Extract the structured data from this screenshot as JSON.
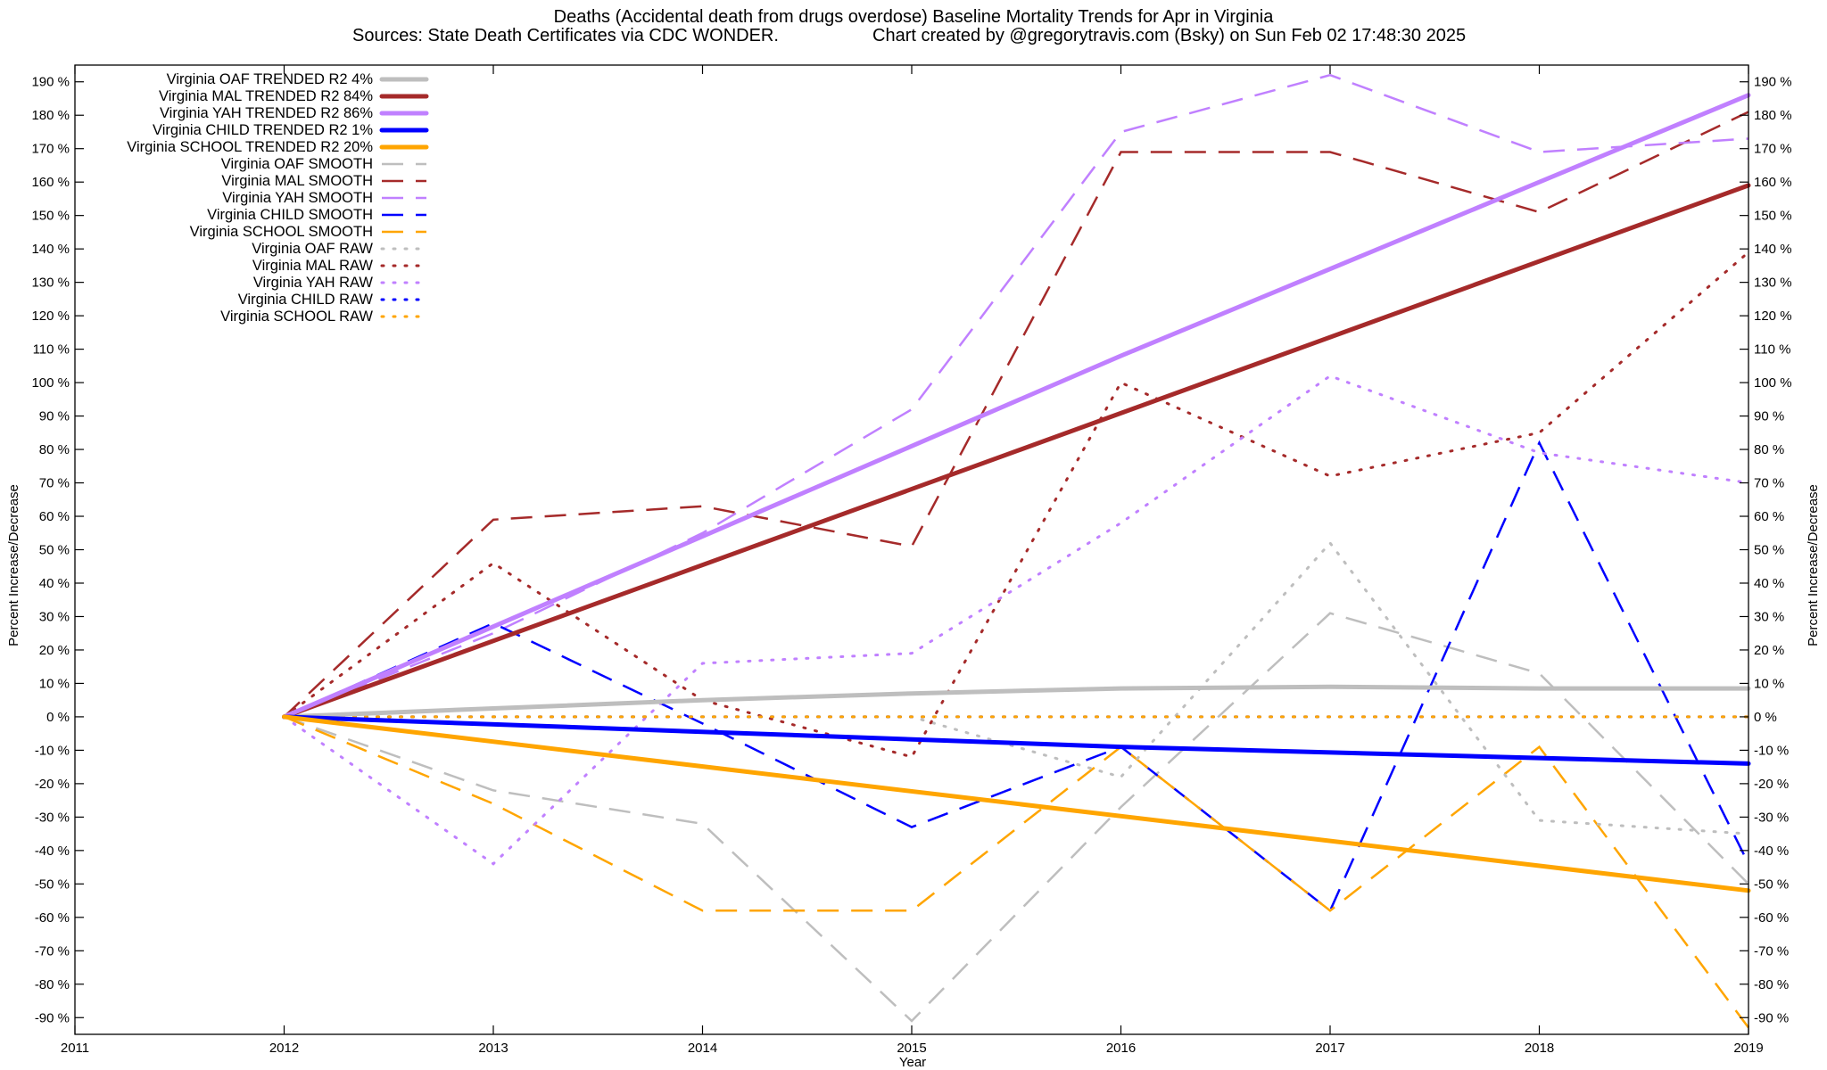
{
  "chart_data": {
    "type": "line",
    "title": "Deaths (Accidental death from drugs overdose)  Baseline Mortality Trends for Apr in Virginia",
    "subtitle_left": "Sources: State Death Certificates via CDC WONDER.",
    "subtitle_right": "Chart created by @gregorytravis.com (Bsky) on Sun Feb 02 17:48:30 2025",
    "xlabel": "Year",
    "ylabel_left": "Percent Increase/Decrease",
    "ylabel_right": "Percent Increase/Decrease",
    "xlim": [
      2011,
      2019
    ],
    "ylim": [
      -95,
      195
    ],
    "x_ticks": [
      "2011",
      "2012",
      "2013",
      "2014",
      "2015",
      "2016",
      "2017",
      "2018",
      "2019"
    ],
    "y_ticks": [
      190,
      180,
      170,
      160,
      150,
      140,
      130,
      120,
      110,
      100,
      90,
      80,
      70,
      60,
      50,
      40,
      30,
      20,
      10,
      0,
      -10,
      -20,
      -30,
      -40,
      -50,
      -60,
      -70,
      -80,
      -90
    ],
    "y_tick_suffix": " %",
    "grid": false,
    "legend_position": "top-left",
    "series": [
      {
        "name": "Virginia OAF TRENDED R2  4%",
        "style": "trend",
        "color": "#bebebe",
        "x": [
          2012,
          2013,
          2014,
          2015,
          2016,
          2017,
          2018,
          2019
        ],
        "y": [
          0,
          2.5,
          5,
          7,
          8.5,
          9,
          8.5,
          8.5
        ]
      },
      {
        "name": "Virginia MAL TRENDED R2  84%",
        "style": "trend",
        "color": "#a52a2a",
        "x": [
          2012,
          2019
        ],
        "y": [
          0,
          159
        ]
      },
      {
        "name": "Virginia YAH TRENDED R2  86%",
        "style": "trend",
        "color": "#c080ff",
        "x": [
          2012,
          2016,
          2019
        ],
        "y": [
          0,
          108,
          186
        ]
      },
      {
        "name": "Virginia CHILD TRENDED R2  1%",
        "style": "trend",
        "color": "#0000ff",
        "x": [
          2012,
          2016,
          2019
        ],
        "y": [
          0,
          -9,
          -14
        ]
      },
      {
        "name": "Virginia SCHOOL TRENDED R2  20%",
        "style": "trend",
        "color": "#ffa500",
        "x": [
          2012,
          2019
        ],
        "y": [
          0,
          -52
        ]
      },
      {
        "name": "Virginia OAF SMOOTH",
        "style": "smooth",
        "color": "#bebebe",
        "x": [
          2012,
          2013,
          2014,
          2015,
          2016,
          2017,
          2018,
          2019
        ],
        "y": [
          0,
          -22,
          -32,
          -91,
          -27,
          31,
          13,
          -50
        ]
      },
      {
        "name": "Virginia MAL SMOOTH",
        "style": "smooth",
        "color": "#a52a2a",
        "x": [
          2012,
          2013,
          2014,
          2015,
          2016,
          2017,
          2018,
          2019
        ],
        "y": [
          0,
          59,
          63,
          51,
          169,
          169,
          151,
          181
        ]
      },
      {
        "name": "Virginia YAH SMOOTH",
        "style": "smooth",
        "color": "#c080ff",
        "x": [
          2012,
          2013,
          2014,
          2015,
          2016,
          2017,
          2018,
          2019
        ],
        "y": [
          0,
          25,
          55,
          92,
          175,
          192,
          169,
          173
        ]
      },
      {
        "name": "Virginia CHILD SMOOTH",
        "style": "smooth",
        "color": "#0000ff",
        "x": [
          2012,
          2013,
          2014,
          2015,
          2016,
          2017,
          2018,
          2019
        ],
        "y": [
          0,
          28,
          -2,
          -33,
          -9,
          -58,
          82,
          -44
        ]
      },
      {
        "name": "Virginia SCHOOL SMOOTH",
        "style": "smooth",
        "color": "#ffa500",
        "x": [
          2012,
          2013,
          2014,
          2015,
          2016,
          2017,
          2018,
          2019
        ],
        "y": [
          0,
          -26,
          -58,
          -58,
          -9,
          -58,
          -9,
          -93
        ]
      },
      {
        "name": "Virginia OAF RAW",
        "style": "raw",
        "color": "#bebebe",
        "x": [
          2012,
          2013,
          2014,
          2015,
          2016,
          2017,
          2018,
          2019
        ],
        "y": [
          0,
          0,
          0,
          0,
          -18,
          52,
          -31,
          -35
        ]
      },
      {
        "name": "Virginia MAL RAW",
        "style": "raw",
        "color": "#a52a2a",
        "x": [
          2012,
          2013,
          2014,
          2015,
          2016,
          2017,
          2018,
          2019
        ],
        "y": [
          0,
          46,
          5,
          -12,
          100,
          72,
          85,
          139
        ]
      },
      {
        "name": "Virginia YAH RAW",
        "style": "raw",
        "color": "#c080ff",
        "x": [
          2012,
          2013,
          2014,
          2015,
          2016,
          2017,
          2018,
          2019
        ],
        "y": [
          0,
          -44,
          16,
          19,
          58,
          102,
          79,
          70
        ]
      },
      {
        "name": "Virginia CHILD RAW",
        "style": "raw",
        "color": "#0000ff",
        "x": [
          2012,
          2013,
          2014,
          2015,
          2016,
          2017,
          2018,
          2019
        ],
        "y": [
          0,
          0,
          0,
          0,
          0,
          0,
          0,
          0
        ]
      },
      {
        "name": "Virginia SCHOOL RAW",
        "style": "raw",
        "color": "#ffa500",
        "x": [
          2012,
          2013,
          2014,
          2015,
          2016,
          2017,
          2018,
          2019
        ],
        "y": [
          0,
          0,
          0,
          0,
          0,
          0,
          0,
          0
        ]
      }
    ]
  }
}
